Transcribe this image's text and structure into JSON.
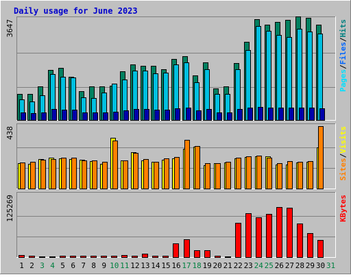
{
  "chart_data": {
    "type": "bar",
    "title": "Daily usage for June 2023",
    "x": [
      "1",
      "2",
      "3",
      "4",
      "5",
      "6",
      "7",
      "8",
      "9",
      "10",
      "11",
      "12",
      "13",
      "14",
      "15",
      "16",
      "17",
      "18",
      "19",
      "20",
      "21",
      "22",
      "23",
      "24",
      "25",
      "26",
      "27",
      "28",
      "29",
      "30",
      "31"
    ],
    "weekend_days": [
      "3",
      "4",
      "10",
      "11",
      "17",
      "18",
      "24",
      "25",
      "31"
    ],
    "panels": [
      {
        "id": "pages-files-hits",
        "max_label": "3647",
        "ylim": [
          0,
          3647
        ],
        "legend": [
          "Pages",
          "/",
          "Files",
          "/",
          "Hits"
        ],
        "legend_colors": [
          "#00e0ff",
          "#000000",
          "#0066ff",
          "#000000",
          "#008080"
        ],
        "series": [
          {
            "name": "Hits",
            "color": "#008060",
            "values": [
              950,
              950,
              1240,
              1830,
              1890,
              1580,
              1060,
              1230,
              1230,
              1250,
              1770,
              2020,
              1980,
              1980,
              1860,
              2210,
              2310,
              1630,
              2090,
              1170,
              1220,
              2070,
              2830,
              3640,
              3440,
              3550,
              3630,
              3750,
              3690,
              3460,
              null
            ]
          },
          {
            "name": "Files",
            "color": "#00c0e0",
            "values": [
              760,
              680,
              900,
              1670,
              1570,
              1550,
              850,
              820,
              1000,
              1320,
              1490,
              1790,
              1800,
              1710,
              1720,
              2010,
              2100,
              1380,
              1850,
              960,
              960,
              1840,
              2530,
              3410,
              3230,
              3090,
              3000,
              3290,
              3210,
              3140,
              null
            ]
          },
          {
            "name": "Pages",
            "color": "#0000aa",
            "values": [
              300,
              260,
              290,
              410,
              400,
              390,
              300,
              290,
              300,
              330,
              380,
              420,
              420,
              400,
              400,
              450,
              460,
              360,
              430,
              300,
              300,
              430,
              480,
              500,
              480,
              470,
              460,
              470,
              460,
              450,
              null
            ]
          }
        ]
      },
      {
        "id": "visits-sites",
        "max_label": "438",
        "ylim": [
          0,
          438
        ],
        "legend": [
          "Sites",
          "/",
          "Visits"
        ],
        "legend_colors": [
          "#ff8000",
          "#000000",
          "#ffff00"
        ],
        "series": [
          {
            "name": "Visits",
            "color": "#ffff00",
            "values": [
              180,
              175,
              210,
              220,
              215,
              210,
              205,
              195,
              175,
              355,
              200,
              255,
              200,
              190,
              205,
              215,
              280,
              295,
              165,
              180,
              185,
              215,
              225,
              230,
              230,
              170,
              170,
              185,
              190,
              290,
              null
            ]
          },
          {
            "name": "Sites",
            "color": "#ff8000",
            "values": [
              185,
              190,
              205,
              210,
              220,
              220,
              200,
              200,
              190,
              340,
              200,
              250,
              210,
              190,
              215,
              225,
              345,
              300,
              180,
              180,
              190,
              220,
              230,
              235,
              220,
              180,
              195,
              190,
              195,
              440,
              null
            ]
          }
        ]
      },
      {
        "id": "kbytes",
        "max_label": "125269",
        "ylim": [
          0,
          125269
        ],
        "legend": [
          "KBytes"
        ],
        "legend_colors": [
          "#ff0000"
        ],
        "series": [
          {
            "name": "KBytes",
            "color": "#ff0000",
            "values": [
              4900,
              3800,
              3200,
              3200,
              3700,
              4300,
              4600,
              4200,
              3600,
              4100,
              4900,
              4700,
              8300,
              3900,
              3800,
              29000,
              37200,
              14700,
              15400,
              3700,
              3200,
              69400,
              88200,
              81000,
              86700,
              101000,
              100000,
              68400,
              49500,
              35500,
              null
            ]
          }
        ]
      }
    ]
  }
}
